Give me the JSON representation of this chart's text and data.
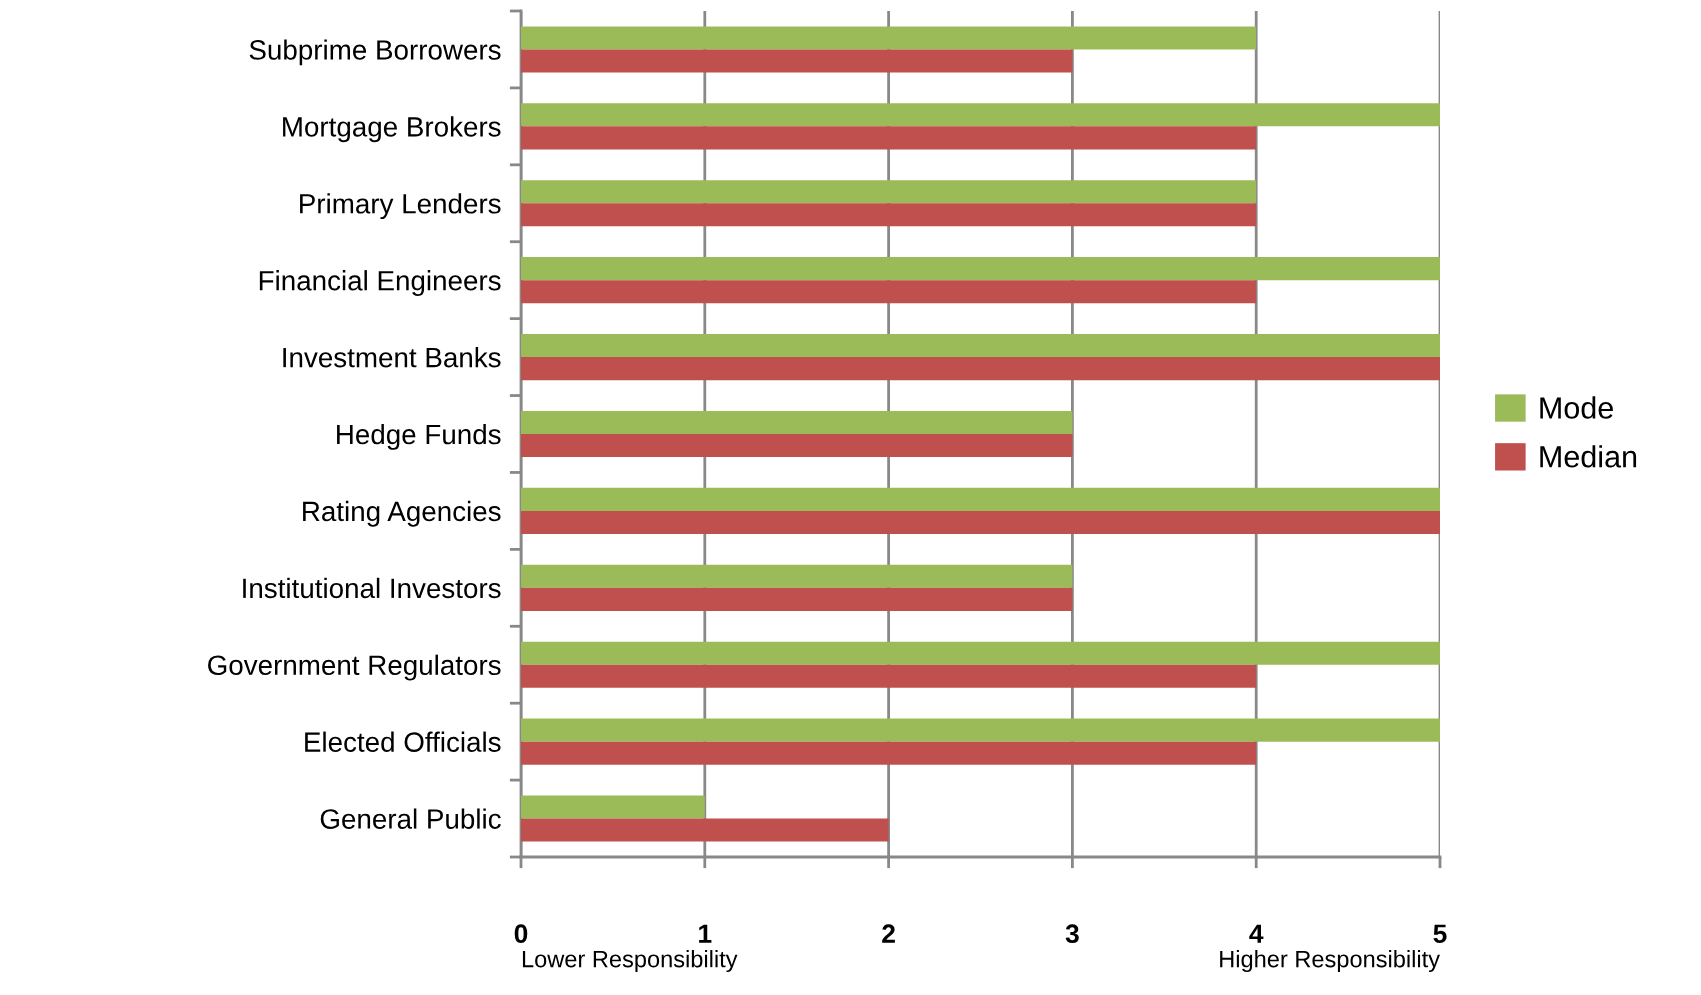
{
  "chart_data": {
    "type": "bar",
    "orientation": "horizontal",
    "categories": [
      "Subprime Borrowers",
      "Mortgage Brokers",
      "Primary Lenders",
      "Financial Engineers",
      "Investment Banks",
      "Hedge Funds",
      "Rating Agencies",
      "Institutional Investors",
      "Government Regulators",
      "Elected Officials",
      "General Public"
    ],
    "series": [
      {
        "name": "Mode",
        "color": "#9bbb59",
        "values": [
          4,
          5,
          4,
          5,
          5,
          3,
          5,
          3,
          5,
          5,
          1
        ]
      },
      {
        "name": "Median",
        "color": "#c0504d",
        "values": [
          3,
          4,
          4,
          4,
          5,
          3,
          5,
          3,
          4,
          4,
          2
        ]
      }
    ],
    "xlim": [
      0,
      5
    ],
    "xticks": [
      0,
      1,
      2,
      3,
      4,
      5
    ],
    "grid": "x",
    "legend": "right",
    "annotations": [
      "Lower Responsibility",
      "Higher Responsibility"
    ]
  }
}
